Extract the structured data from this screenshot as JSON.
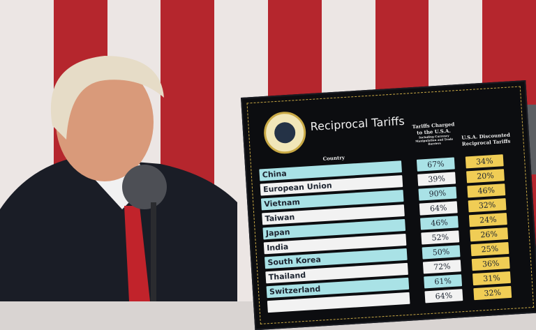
{
  "colors": {
    "flag_red": "#b5262d",
    "flag_white": "#ece6e4",
    "teal_row": "#a9e2e6",
    "gold_cell": "#f0cd55",
    "board": "#0c0d10"
  },
  "board": {
    "title": "Reciprocal Tariffs",
    "seal_icon": "presidential-seal",
    "headers": {
      "country": "Country",
      "charged": "Tariffs Charged to the U.S.A.",
      "charged_note": "Including Currency Manipulation and Trade Barriers",
      "discounted": "U.S.A. Discounted Reciprocal Tariffs"
    },
    "rows": [
      {
        "country": "China",
        "charged": "67%",
        "discounted": "34%"
      },
      {
        "country": "European Union",
        "charged": "39%",
        "discounted": "20%"
      },
      {
        "country": "Vietnam",
        "charged": "90%",
        "discounted": "46%"
      },
      {
        "country": "Taiwan",
        "charged": "64%",
        "discounted": "32%"
      },
      {
        "country": "Japan",
        "charged": "46%",
        "discounted": "24%"
      },
      {
        "country": "India",
        "charged": "52%",
        "discounted": "26%"
      },
      {
        "country": "South Korea",
        "charged": "50%",
        "discounted": "25%"
      },
      {
        "country": "Thailand",
        "charged": "72%",
        "discounted": "36%"
      },
      {
        "country": "Switzerland",
        "charged": "61%",
        "discounted": "31%"
      },
      {
        "country": "",
        "charged": "64%",
        "discounted": "32%"
      }
    ]
  }
}
